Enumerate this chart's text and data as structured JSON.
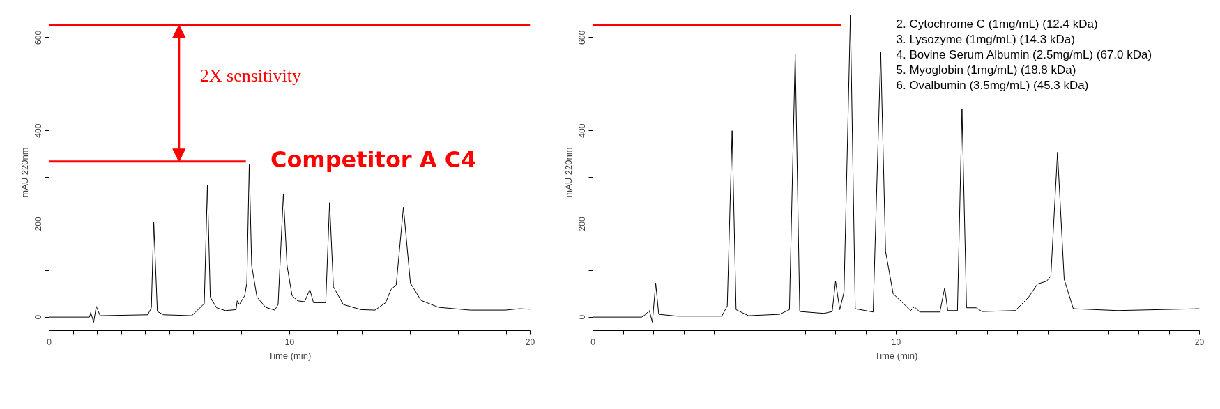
{
  "chart_data": [
    {
      "type": "line",
      "xlabel": "Time (min)",
      "ylabel": "mAU 220nm",
      "xlim": [
        0,
        20
      ],
      "ylim": [
        -29,
        650
      ],
      "xticks": [
        0,
        {
          "value": 1,
          "label": null
        },
        {
          "value": 2,
          "label": null
        },
        {
          "value": 3,
          "label": null
        },
        {
          "value": 4,
          "label": null
        },
        {
          "value": 5,
          "label": null
        },
        {
          "value": 6,
          "label": null
        },
        {
          "value": 7,
          "label": null
        },
        {
          "value": 8,
          "label": null
        },
        {
          "value": 9,
          "label": null
        },
        10,
        {
          "value": 11,
          "label": null
        },
        {
          "value": 12,
          "label": null
        },
        {
          "value": 13,
          "label": null
        },
        {
          "value": 14,
          "label": null
        },
        {
          "value": 15,
          "label": null
        },
        {
          "value": 16,
          "label": null
        },
        {
          "value": 17,
          "label": null
        },
        {
          "value": 18,
          "label": null
        },
        {
          "value": 19,
          "label": null
        },
        20
      ],
      "yticks": [
        0,
        {
          "value": 100,
          "label": null
        },
        200,
        {
          "value": 300,
          "label": null
        },
        400,
        {
          "value": 500,
          "label": null
        },
        600
      ],
      "grid": false,
      "series": [
        {
          "color": "#000000",
          "x": [
            0,
            1.68,
            1.73,
            1.85,
            1.96,
            2.12,
            4.1,
            4.25,
            4.35,
            4.5,
            4.76,
            5.93,
            6.45,
            6.58,
            6.7,
            6.96,
            7.33,
            7.77,
            7.82,
            7.91,
            8.13,
            8.22,
            8.32,
            8.42,
            8.64,
            9.0,
            9.38,
            9.52,
            9.74,
            9.89,
            10.1,
            10.33,
            10.62,
            10.84,
            10.99,
            11.5,
            11.66,
            11.82,
            12.23,
            12.97,
            13.55,
            13.99,
            14.21,
            14.43,
            14.73,
            15.02,
            15.46,
            16.19,
            17.51,
            18.97,
            19.56,
            20
          ],
          "values": [
            0,
            0,
            10,
            -11,
            23,
            3,
            5,
            20,
            204,
            12,
            5,
            3,
            29,
            283,
            43,
            20,
            14,
            16,
            35,
            27,
            46,
            73,
            327,
            111,
            43,
            21,
            15,
            27,
            265,
            111,
            46,
            35,
            33,
            59,
            31,
            31,
            246,
            65,
            27,
            16,
            15,
            31,
            59,
            69,
            236,
            73,
            36,
            21,
            15,
            15,
            18,
            17
          ]
        },
        {
          "color": "#ff0000",
          "x": [
            0,
            8.18
          ],
          "values": [
            334,
            334
          ]
        }
      ],
      "ref_lines": [
        {
          "axis": "y",
          "value": 627,
          "color": "#ff0000"
        }
      ],
      "annotations": [
        "2X sensitivity",
        "Competitor A C4"
      ]
    },
    {
      "type": "line",
      "xlabel": "Time (min)",
      "ylabel": "mAU 220nm",
      "xlim": [
        0,
        20
      ],
      "ylim": [
        -29,
        650
      ],
      "xticks": [
        0,
        {
          "value": 1,
          "label": null
        },
        {
          "value": 2,
          "label": null
        },
        {
          "value": 3,
          "label": null
        },
        {
          "value": 4,
          "label": null
        },
        {
          "value": 5,
          "label": null
        },
        {
          "value": 6,
          "label": null
        },
        {
          "value": 7,
          "label": null
        },
        {
          "value": 8,
          "label": null
        },
        {
          "value": 9,
          "label": null
        },
        10,
        {
          "value": 11,
          "label": null
        },
        {
          "value": 12,
          "label": null
        },
        {
          "value": 13,
          "label": null
        },
        {
          "value": 14,
          "label": null
        },
        {
          "value": 15,
          "label": null
        },
        {
          "value": 16,
          "label": null
        },
        {
          "value": 17,
          "label": null
        },
        {
          "value": 18,
          "label": null
        },
        {
          "value": 19,
          "label": null
        },
        20
      ],
      "yticks": [
        0,
        {
          "value": 100,
          "label": null
        },
        200,
        {
          "value": 300,
          "label": null
        },
        400,
        {
          "value": 500,
          "label": null
        },
        600
      ],
      "grid": false,
      "series": [
        {
          "color": "#000000",
          "x": [
            0,
            1.61,
            1.72,
            1.86,
            1.96,
            2.07,
            2.17,
            2.79,
            4.25,
            4.43,
            4.59,
            4.72,
            5.13,
            6.16,
            6.48,
            6.67,
            6.82,
            7.62,
            7.89,
            8.0,
            8.14,
            8.28,
            8.49,
            8.65,
            9.24,
            9.49,
            9.65,
            9.9,
            10.48,
            10.6,
            10.78,
            11.44,
            11.6,
            11.7,
            12.02,
            12.17,
            12.32,
            12.64,
            12.83,
            13.93,
            14.37,
            14.66,
            14.96,
            15.1,
            15.32,
            15.54,
            15.84,
            17.3,
            20
          ],
          "values": [
            0,
            0,
            5,
            14,
            -11,
            73,
            6,
            2,
            2,
            24,
            400,
            16,
            3,
            6,
            16,
            565,
            12,
            8,
            12,
            77,
            16,
            54,
            649,
            18,
            11,
            570,
            141,
            50,
            14,
            22,
            11,
            11,
            63,
            14,
            14,
            446,
            20,
            20,
            12,
            14,
            43,
            71,
            77,
            88,
            354,
            81,
            18,
            14,
            18
          ]
        },
        {
          "color": "#ff0000",
          "x": [
            0,
            8.18
          ],
          "values": [
            627,
            627
          ]
        }
      ],
      "annotations": [
        "2. Cytochrome C (1mg/mL) (12.4 kDa)",
        "3. Lysozyme (1mg/mL) (14.3 kDa)",
        "4. Bovine Serum Albumin (2.5mg/mL) (67.0 kDa)",
        "5. Myoglobin (1mg/mL) (18.8 kDa)",
        "6. Ovalbumin (3.5mg/mL) (45.3 kDa)"
      ]
    }
  ]
}
